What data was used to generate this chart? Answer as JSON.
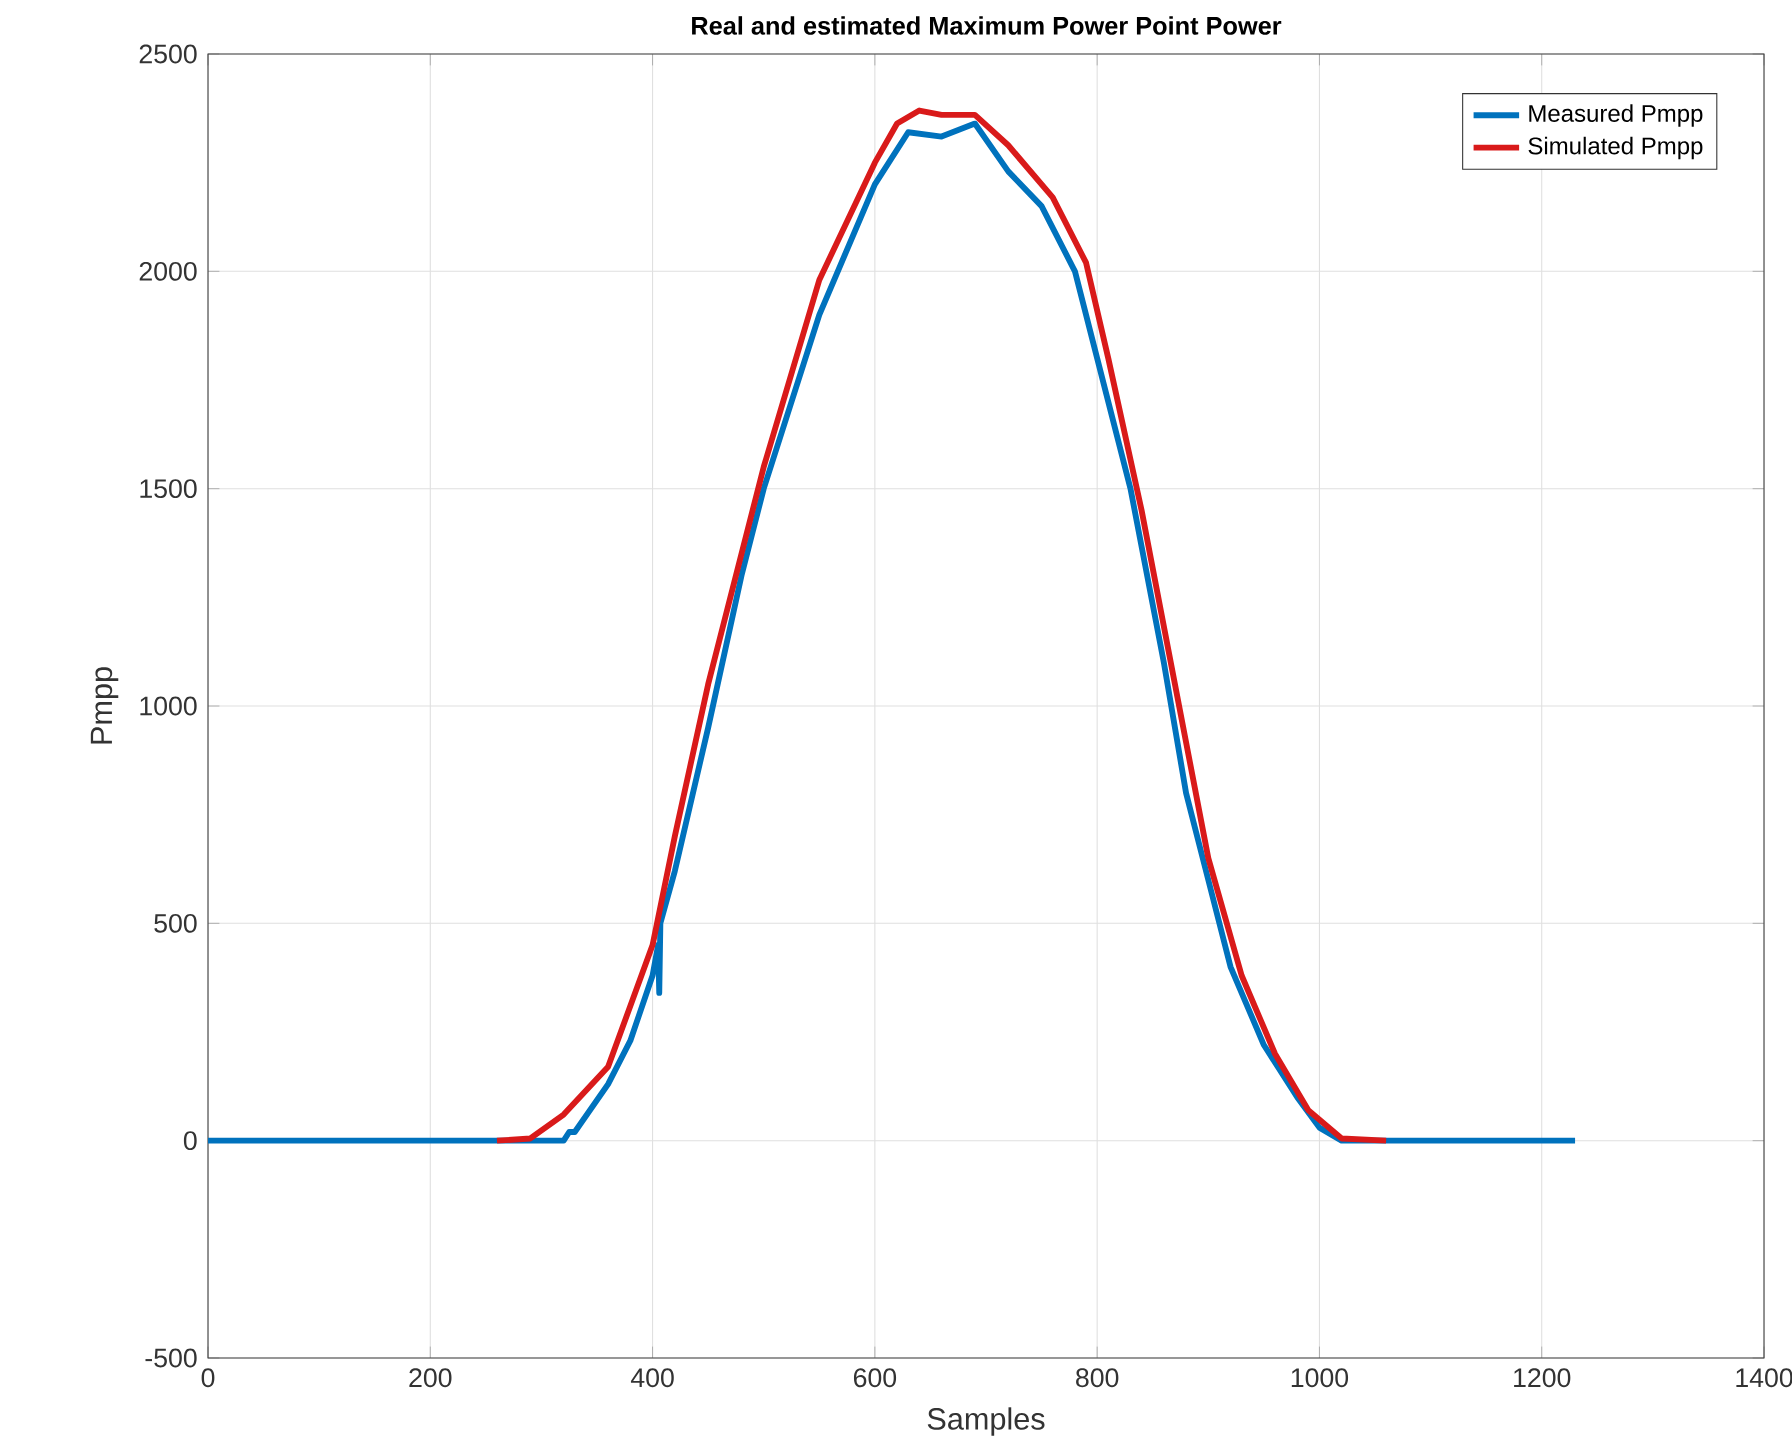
{
  "chart_data": {
    "type": "line",
    "title": "**Real and estimated Maximum Power Point Power**",
    "xlabel": "Samples",
    "ylabel": "Pmpp",
    "xlim": [
      0,
      1400
    ],
    "ylim": [
      -500,
      2500
    ],
    "xticks": [
      0,
      200,
      400,
      600,
      800,
      1000,
      1200,
      1400
    ],
    "yticks": [
      -500,
      0,
      500,
      1000,
      1500,
      2000,
      2500
    ],
    "grid": true,
    "legend": "top right",
    "series": [
      {
        "name": "Measured Pmpp",
        "color": "#0072bd",
        "x": [
          0,
          320,
          325,
          330,
          360,
          380,
          400,
          405,
          406,
          407,
          420,
          450,
          480,
          500,
          550,
          600,
          630,
          660,
          690,
          720,
          750,
          780,
          800,
          830,
          860,
          880,
          900,
          920,
          950,
          980,
          1000,
          1020,
          1230
        ],
        "values": [
          0,
          0,
          20,
          20,
          130,
          230,
          380,
          450,
          340,
          500,
          620,
          950,
          1300,
          1500,
          1900,
          2200,
          2320,
          2310,
          2340,
          2230,
          2150,
          2000,
          1800,
          1500,
          1100,
          800,
          600,
          400,
          220,
          100,
          30,
          0,
          0
        ]
      },
      {
        "name": "Simulated Pmpp",
        "color": "#d91a1a",
        "x": [
          260,
          290,
          320,
          360,
          400,
          420,
          450,
          500,
          550,
          600,
          620,
          640,
          660,
          690,
          720,
          760,
          790,
          810,
          840,
          870,
          900,
          930,
          960,
          990,
          1020,
          1060
        ],
        "values": [
          0,
          5,
          60,
          170,
          450,
          700,
          1050,
          1550,
          1980,
          2250,
          2340,
          2370,
          2360,
          2360,
          2290,
          2170,
          2020,
          1800,
          1450,
          1050,
          650,
          380,
          200,
          70,
          5,
          0
        ]
      }
    ]
  }
}
